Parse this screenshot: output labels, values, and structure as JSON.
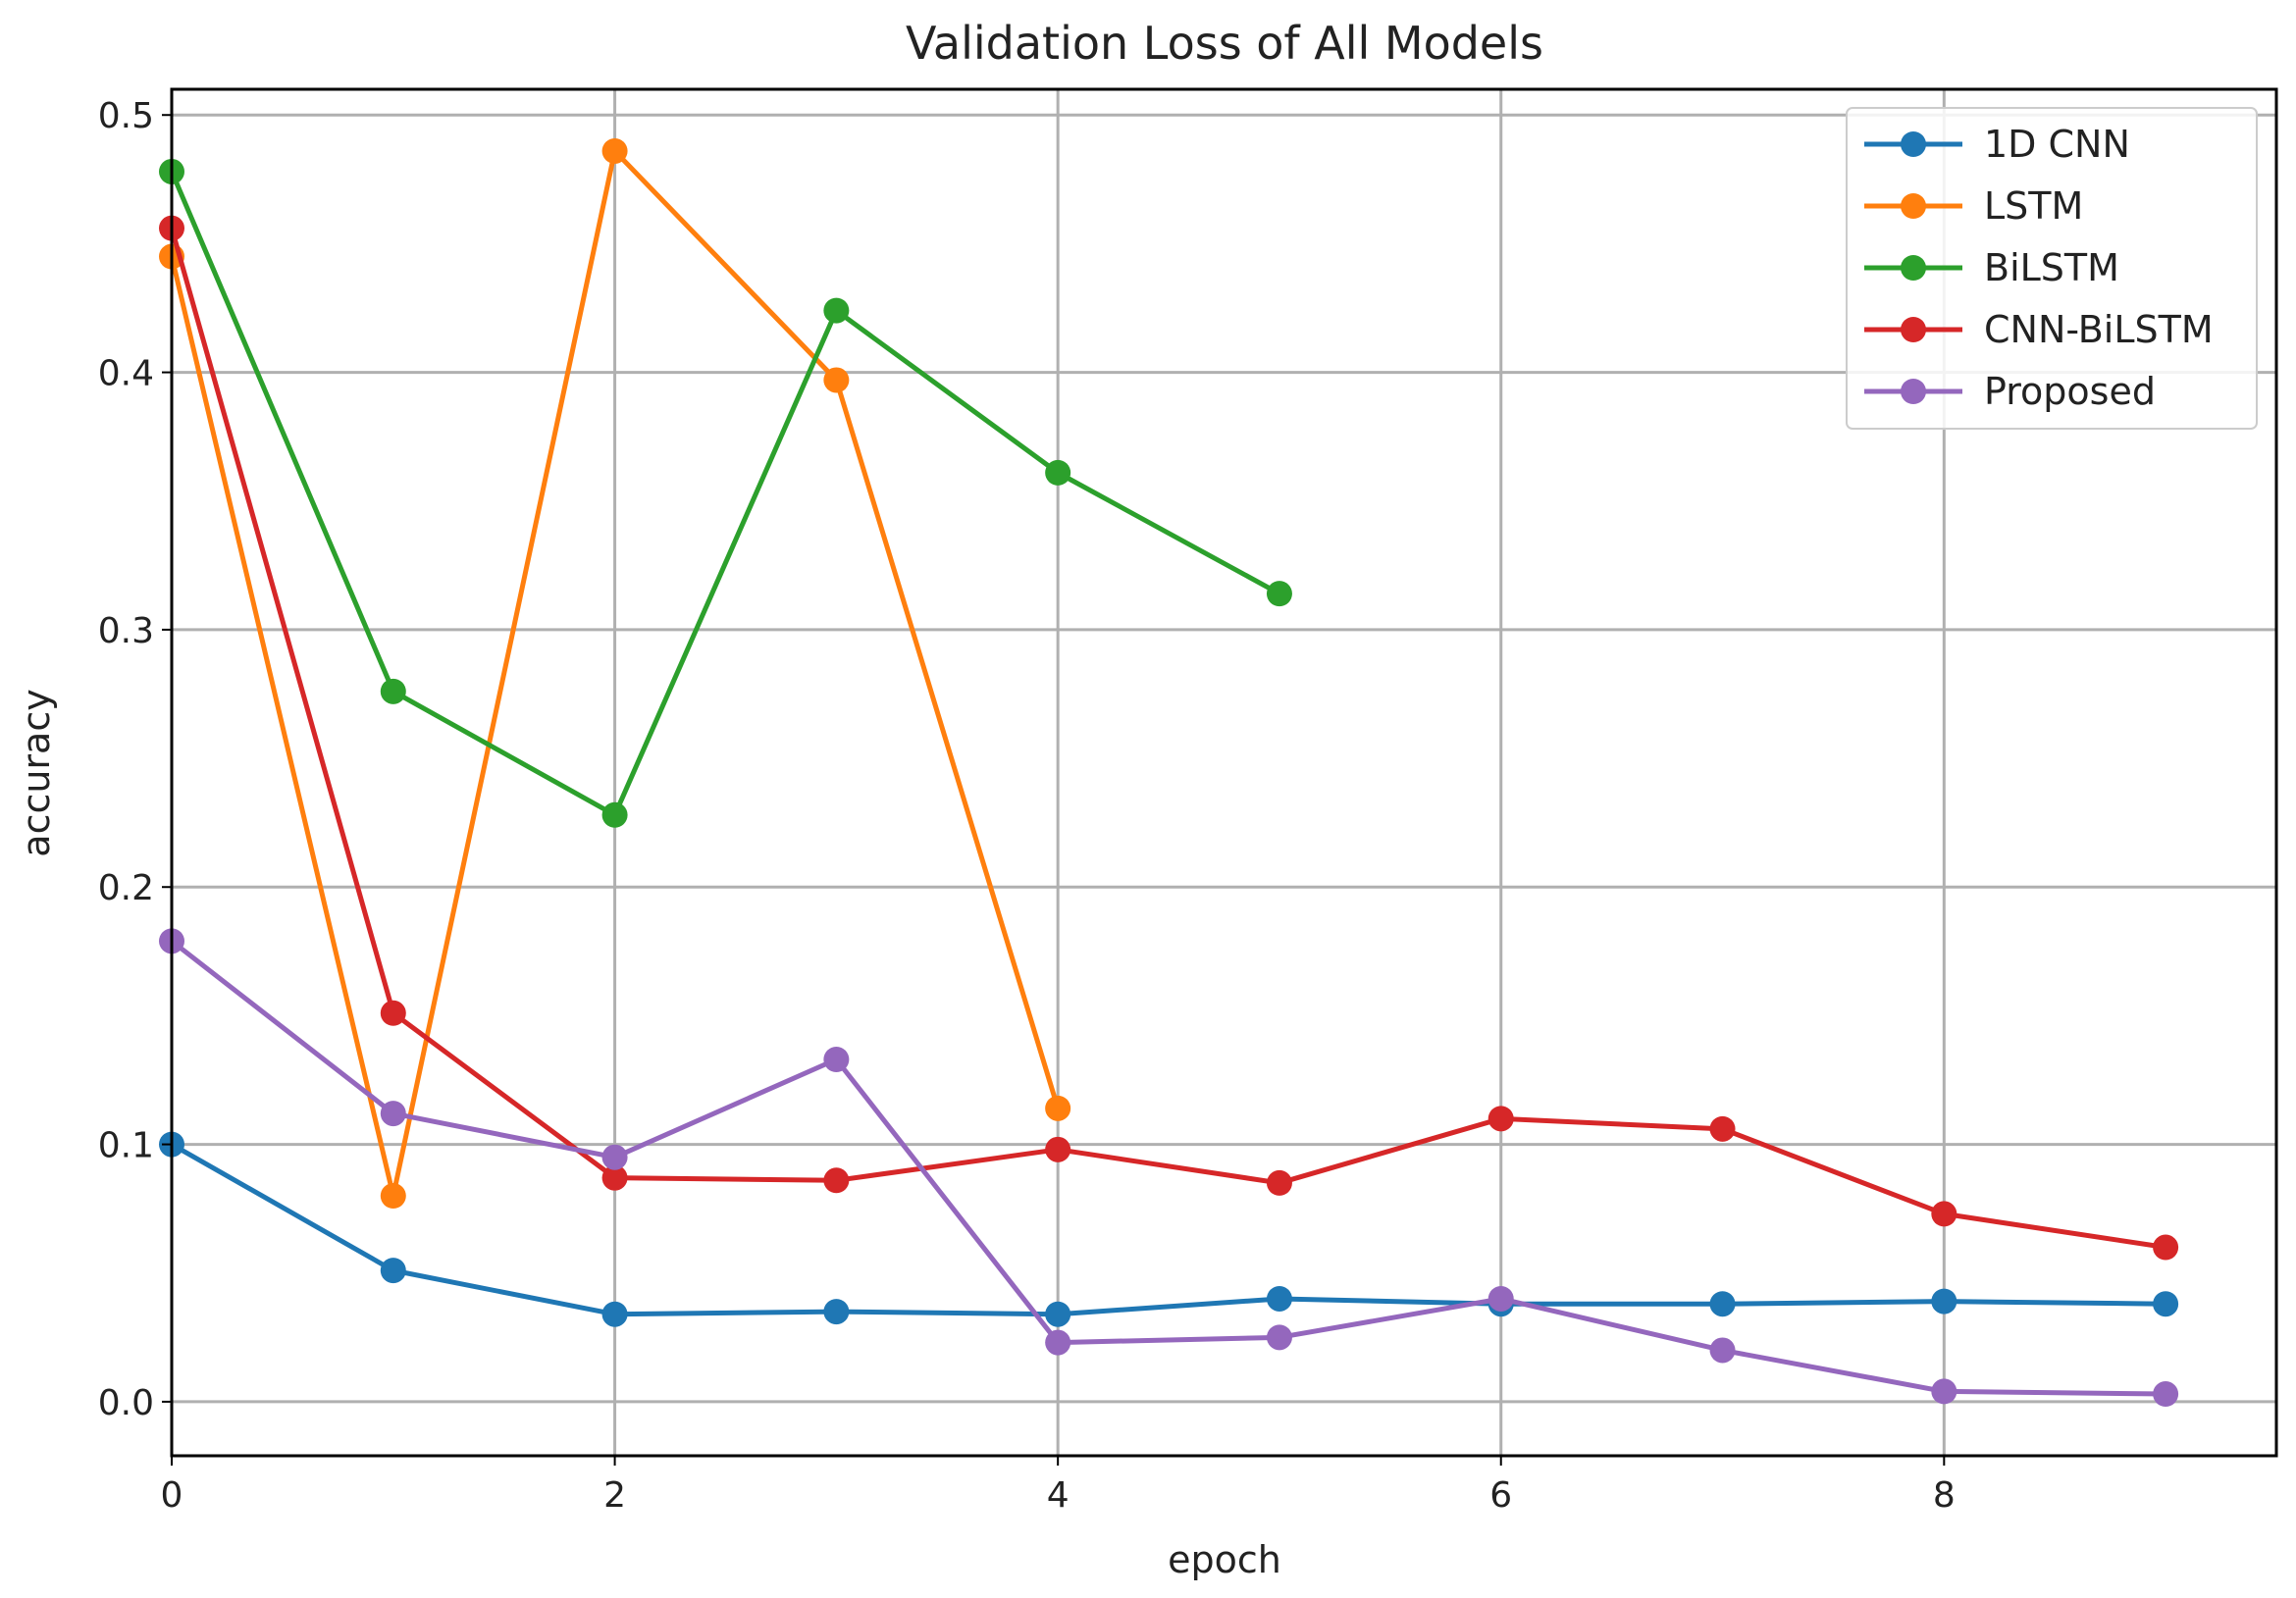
{
  "chart_data": {
    "type": "line",
    "title": "Validation Loss of All Models",
    "xlabel": "epoch",
    "ylabel": "accuracy",
    "xlim": [
      0,
      9.5
    ],
    "ylim": [
      -0.021,
      0.51
    ],
    "xticks": [
      0,
      2,
      4,
      6,
      8
    ],
    "yticks": [
      0.0,
      0.1,
      0.2,
      0.3,
      0.4,
      0.5
    ],
    "xtick_labels": [
      "0",
      "2",
      "4",
      "6",
      "8"
    ],
    "ytick_labels": [
      "0.0",
      "0.1",
      "0.2",
      "0.3",
      "0.4",
      "0.5"
    ],
    "grid": true,
    "legend_position": "top-right",
    "series": [
      {
        "name": "1D CNN",
        "color": "#1f77b4",
        "x": [
          0,
          1,
          2,
          3,
          4,
          5,
          6,
          7,
          8,
          9
        ],
        "values": [
          0.1,
          0.051,
          0.034,
          0.035,
          0.034,
          0.04,
          0.038,
          0.038,
          0.039,
          0.038
        ]
      },
      {
        "name": "LSTM",
        "color": "#ff7f0e",
        "x": [
          0,
          1,
          2,
          3,
          4
        ],
        "values": [
          0.445,
          0.08,
          0.486,
          0.397,
          0.114
        ]
      },
      {
        "name": "BiLSTM",
        "color": "#2ca02c",
        "x": [
          0,
          1,
          2,
          3,
          4,
          5
        ],
        "values": [
          0.478,
          0.276,
          0.228,
          0.424,
          0.361,
          0.314
        ]
      },
      {
        "name": "CNN-BiLSTM",
        "color": "#d62728",
        "x": [
          0,
          1,
          2,
          3,
          4,
          5,
          6,
          7,
          8,
          9
        ],
        "values": [
          0.456,
          0.151,
          0.087,
          0.086,
          0.098,
          0.085,
          0.11,
          0.106,
          0.073,
          0.06
        ]
      },
      {
        "name": "Proposed",
        "color": "#9467bd",
        "x": [
          0,
          1,
          2,
          3,
          4,
          5,
          6,
          7,
          8,
          9
        ],
        "values": [
          0.179,
          0.112,
          0.095,
          0.133,
          0.023,
          0.025,
          0.04,
          0.02,
          0.004,
          0.003
        ]
      }
    ]
  }
}
